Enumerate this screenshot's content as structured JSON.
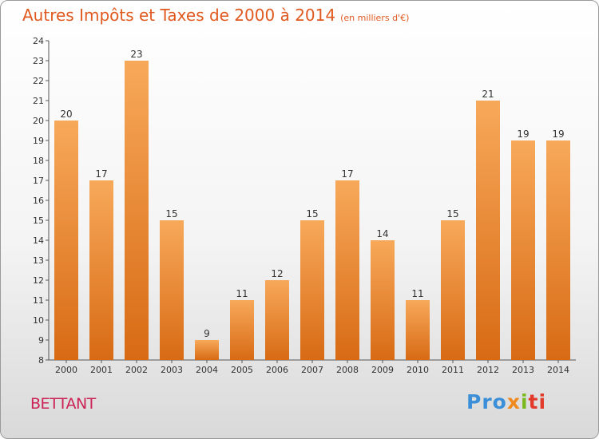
{
  "title": "Autres Impôts et Taxes de 2000 à 2014",
  "subtitle": "(en milliers d'€)",
  "commune": "BETTANT",
  "logo": {
    "p1": "Pro",
    "p2": "x",
    "p3": "i",
    "p4": "ti"
  },
  "colors": {
    "bar_top": "#f7a95a",
    "bar_bottom": "#d86a14",
    "title": "#e05a20",
    "commune": "#cc2255",
    "axis": "#555555"
  },
  "chart_data": {
    "type": "bar",
    "title": "Autres Impôts et Taxes de 2000 à 2014",
    "subtitle": "(en milliers d'€)",
    "xlabel": "",
    "ylabel": "",
    "categories": [
      "2000",
      "2001",
      "2002",
      "2003",
      "2004",
      "2005",
      "2006",
      "2007",
      "2008",
      "2009",
      "2010",
      "2011",
      "2012",
      "2013",
      "2014"
    ],
    "values": [
      20,
      17,
      23,
      15,
      9,
      11,
      12,
      15,
      17,
      14,
      11,
      15,
      21,
      19,
      19
    ],
    "ylim": [
      8,
      24
    ],
    "yticks": [
      8,
      9,
      10,
      11,
      12,
      13,
      14,
      15,
      16,
      17,
      18,
      19,
      20,
      21,
      22,
      23,
      24
    ],
    "grid": false,
    "data_labels": true
  }
}
